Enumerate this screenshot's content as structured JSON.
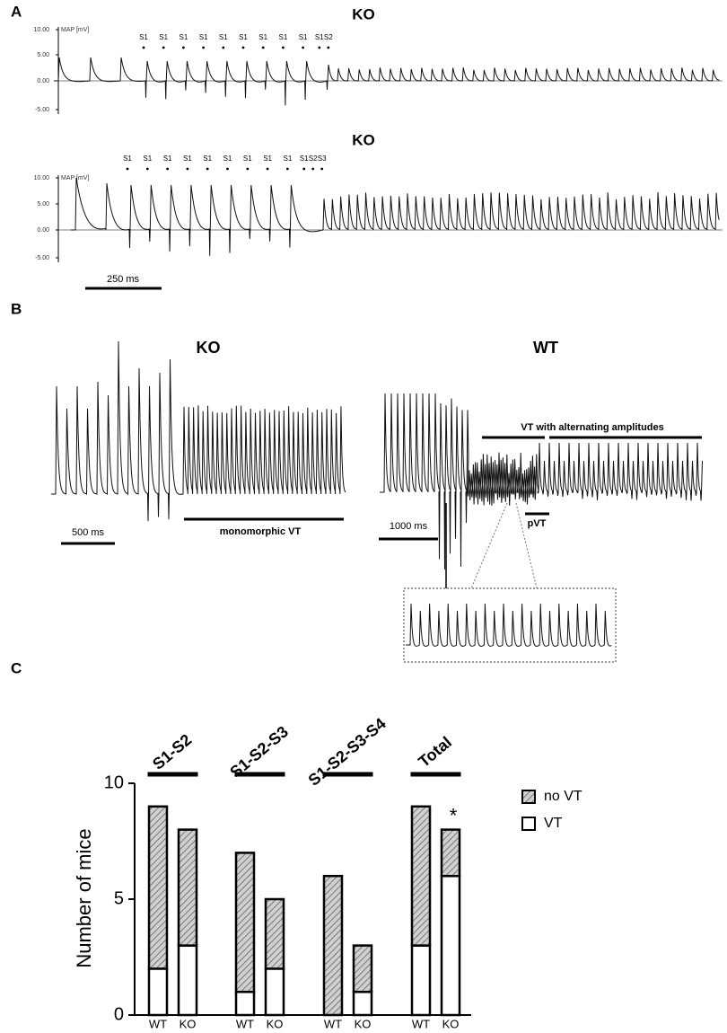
{
  "panel_a": {
    "label": "A",
    "traces": [
      {
        "title": "KO",
        "axis_label": "MAP [mV]",
        "ticks": [
          "10.00",
          "5.00",
          "0.00",
          "-5.00"
        ],
        "stimuli": [
          "S1",
          "S1",
          "S1",
          "S1",
          "S1",
          "S1",
          "S1",
          "S1",
          "S1",
          "S1",
          "S2"
        ]
      },
      {
        "title": "KO",
        "axis_label": "MAP [mV]",
        "ticks": [
          "10.00",
          "5.00",
          "0.00",
          "-5.00"
        ],
        "stimuli": [
          "S1",
          "S1",
          "S1",
          "S1",
          "S1",
          "S1",
          "S1",
          "S1",
          "S1",
          "S1",
          "S2",
          "S3"
        ]
      }
    ],
    "scale_bar": "250 ms"
  },
  "panel_b": {
    "label": "B",
    "ko": {
      "title": "KO",
      "scale_bar": "500 ms",
      "annotation": "monomorphic VT"
    },
    "wt": {
      "title": "WT",
      "scale_bar": "1000 ms",
      "annotation": "VT with alternating amplitudes",
      "annotation_2": "pVT"
    }
  },
  "panel_label_c": "C",
  "chart_data": {
    "type": "stacked_bar",
    "groups": [
      "S1-S2",
      "S1-S2-S3",
      "S1-S2-S3-S4",
      "Total"
    ],
    "categories": [
      "WT",
      "KO",
      "WT",
      "KO",
      "WT",
      "KO",
      "WT",
      "KO"
    ],
    "series": [
      {
        "name": "VT",
        "color": "#ffffff",
        "values": [
          2,
          3,
          1,
          2,
          0,
          1,
          3,
          6
        ]
      },
      {
        "name": "no VT",
        "color": "#d0d0d0",
        "pattern": "hatch",
        "values": [
          7,
          5,
          6,
          3,
          6,
          2,
          6,
          2
        ]
      }
    ],
    "y_label": "Number of mice",
    "ylim": [
      0,
      10
    ],
    "yticks": [
      0,
      5,
      10
    ],
    "annotations": [
      {
        "text": "*"
      }
    ],
    "legend": "right"
  }
}
